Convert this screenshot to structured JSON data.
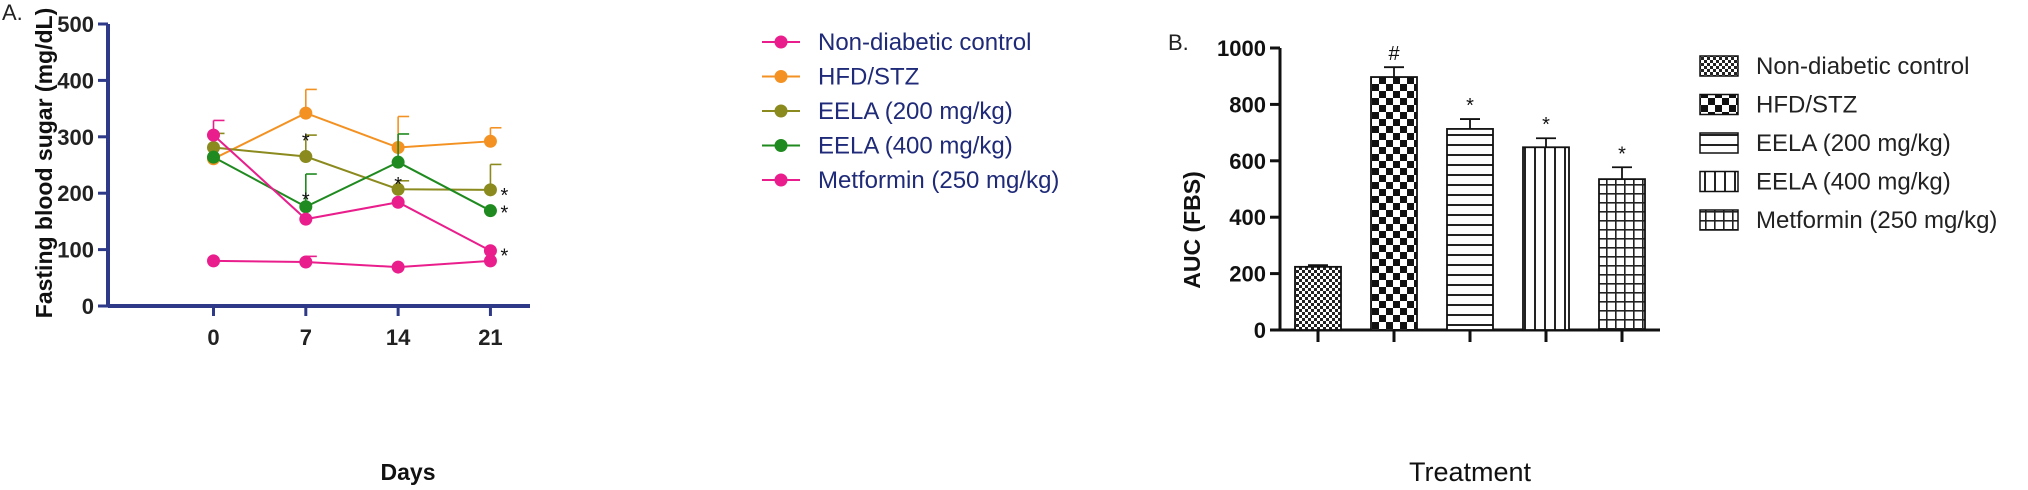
{
  "chart_data": [
    {
      "panel_label": "A.",
      "type": "line",
      "xlabel": "Days",
      "ylabel": "Fasting blood sugar (mg/dL)",
      "x": [
        0,
        7,
        14,
        21
      ],
      "xlim": [
        -8,
        24
      ],
      "ylim": [
        0,
        500
      ],
      "xticks": [
        0,
        7,
        14,
        21
      ],
      "yticks": [
        0,
        100,
        200,
        300,
        400,
        500
      ],
      "axis_color": "#2e3a87",
      "series": [
        {
          "name": "Non-diabetic control",
          "color": "#e91e8c",
          "values": [
            80,
            78,
            69,
            80
          ],
          "err": [
            0,
            10,
            0,
            0
          ]
        },
        {
          "name": "HFD/STZ",
          "color": "#f39223",
          "values": [
            261,
            342,
            281,
            292
          ],
          "err": [
            0,
            42,
            55,
            24
          ]
        },
        {
          "name": "EELA (200 mg/kg)",
          "color": "#8a8a1e",
          "values": [
            281,
            265,
            207,
            206
          ],
          "err": [
            25,
            38,
            15,
            45
          ]
        },
        {
          "name": "EELA (400 mg/kg)",
          "color": "#1f8a1f",
          "values": [
            264,
            176,
            255,
            169
          ],
          "err": [
            0,
            58,
            50,
            0
          ]
        },
        {
          "name": "Metformin (250 mg/kg)",
          "color": "#e91e8c",
          "values": [
            303,
            154,
            184,
            98
          ],
          "err": [
            26,
            0,
            0,
            0
          ]
        }
      ],
      "annotations": [
        {
          "x": 7,
          "y": 302,
          "text": "*"
        },
        {
          "x": 7,
          "y": 198,
          "text": "*"
        },
        {
          "x": 14,
          "y": 225,
          "text": "*"
        },
        {
          "x": 21,
          "y": 206,
          "text": "*",
          "side": "right"
        },
        {
          "x": 21,
          "y": 175,
          "text": "*",
          "side": "right"
        },
        {
          "x": 21,
          "y": 98,
          "text": "*",
          "side": "right"
        }
      ],
      "legend": "right"
    },
    {
      "panel_label": "B.",
      "type": "bar",
      "xlabel": "Treatment",
      "ylabel": "AUC (FBS)",
      "ylim": [
        0,
        1000
      ],
      "yticks": [
        0,
        200,
        400,
        600,
        800,
        1000
      ],
      "categories": [
        "Non-diabetic control",
        "HFD/STZ",
        "EELA (200 mg/kg)",
        "EELA (400 mg/kg)",
        "Metformin (250 mg/kg)"
      ],
      "values": [
        224,
        897,
        713,
        648,
        535
      ],
      "err": [
        6,
        35,
        35,
        32,
        42
      ],
      "patterns": [
        "fine-check",
        "checker",
        "horizontal",
        "vertical",
        "grid"
      ],
      "annotations": [
        "",
        "#",
        "*",
        "*",
        "*"
      ],
      "legend": "right"
    }
  ]
}
